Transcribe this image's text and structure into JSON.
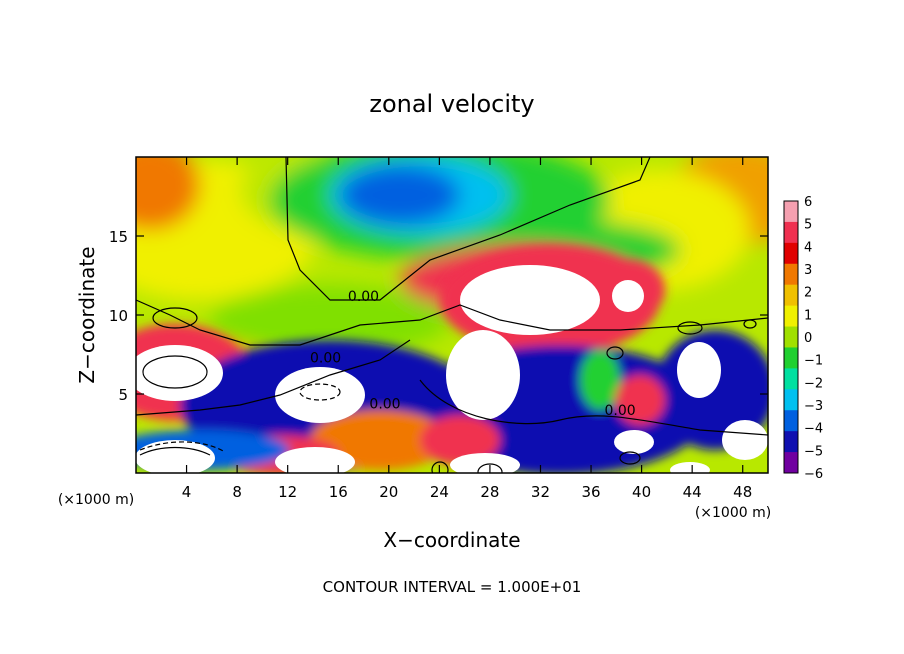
{
  "chart_data": {
    "type": "heatmap",
    "title": "zonal velocity",
    "xlabel": "X−coordinate",
    "ylabel": "Z−coordinate",
    "x_unit_left": "(×1000 m)",
    "x_unit_right": "(×1000 m)",
    "xlim": [
      0,
      50
    ],
    "ylim": [
      0,
      20
    ],
    "x_ticks": [
      4,
      8,
      12,
      16,
      20,
      24,
      28,
      32,
      36,
      40,
      44,
      48
    ],
    "y_ticks": [
      5,
      10,
      15
    ],
    "colorbar": {
      "ticks": [
        6,
        5,
        4,
        3,
        2,
        1,
        0,
        -1,
        -2,
        -3,
        -4,
        -5,
        -6
      ],
      "tick_labels": [
        "6",
        "5",
        "4",
        "3",
        "2",
        "1",
        "0",
        "−1",
        "−2",
        "−3",
        "−4",
        "−5",
        "−6"
      ],
      "range": [
        -6,
        6
      ],
      "colors": [
        "#f5a0b0",
        "#f03050",
        "#e00000",
        "#f07800",
        "#f0c000",
        "#f0f000",
        "#a0e000",
        "#20d030",
        "#00e0a0",
        "#00c0f0",
        "#0060e0",
        "#1010b0",
        "#7000a0"
      ]
    },
    "contour_labels": [
      {
        "text": "0.00",
        "x": 18.0,
        "z": 11.2
      },
      {
        "text": "0.00",
        "x": 15.0,
        "z": 7.3
      },
      {
        "text": "0.00",
        "x": 19.7,
        "z": 4.4
      },
      {
        "text": "0.00",
        "x": 38.3,
        "z": 4.0
      }
    ],
    "annotation": "CONTOUR INTERVAL = 1.000E+01"
  }
}
